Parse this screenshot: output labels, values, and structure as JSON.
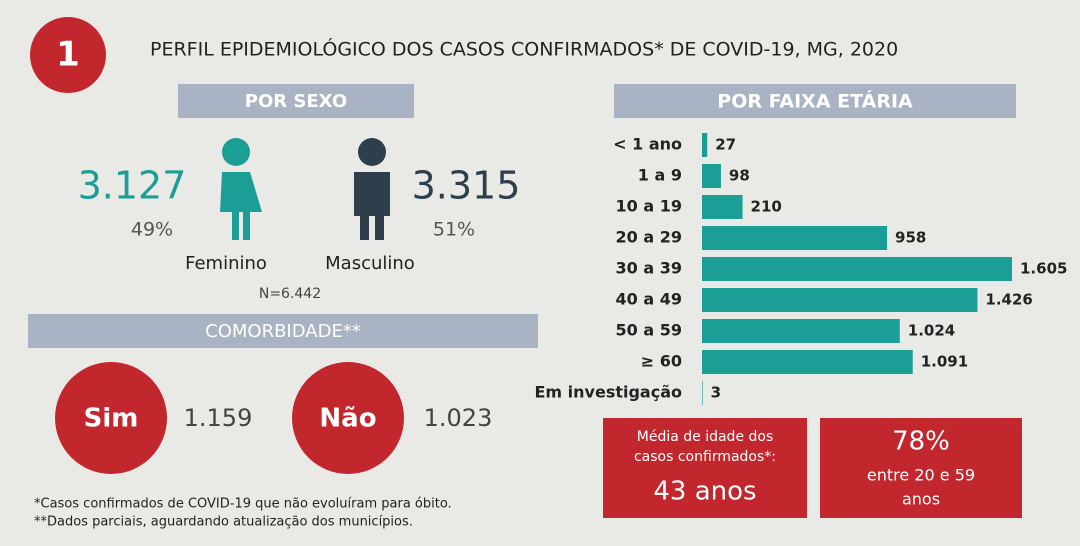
{
  "header": {
    "number": "1",
    "title": "PERFIL EPIDEMIOLÓGICO DOS CASOS CONFIRMADOS* DE COVID-19, MG, 2020"
  },
  "sex": {
    "heading": "POR SEXO",
    "female": {
      "count": "3.127",
      "percent": "49%",
      "label": "Feminino"
    },
    "male": {
      "count": "3.315",
      "percent": "51%",
      "label": "Masculino"
    },
    "total": "N=6.442"
  },
  "comorbidity": {
    "heading": "COMORBIDADE**",
    "yes": {
      "label": "Sim",
      "count": "1.159"
    },
    "no": {
      "label": "Não",
      "count": "1.023"
    }
  },
  "chart_data": {
    "type": "bar",
    "orientation": "horizontal",
    "title": "POR FAIXA ETÁRIA",
    "categories": [
      "< 1 ano",
      "1 a 9",
      "10 a 19",
      "20 a 29",
      "30 a 39",
      "40 a 49",
      "50 a 59",
      "≥ 60",
      "Em investigação"
    ],
    "values": [
      27,
      98,
      210,
      958,
      1605,
      1426,
      1024,
      1091,
      3
    ],
    "value_labels": [
      "27",
      "98",
      "210",
      "958",
      "1.605",
      "1.426",
      "1.024",
      "1.091",
      "3"
    ],
    "color": "#1a9e96"
  },
  "summary": {
    "mean_age": {
      "label": [
        "Média de idade dos",
        "casos confirmados*:"
      ],
      "value": "43 anos"
    },
    "share": {
      "value": "78%",
      "label": [
        "entre 20 e 59",
        "anos"
      ]
    }
  },
  "footnotes": [
    "*Casos confirmados de COVID-19 que não evoluíram para óbito.",
    "**Dados parciais, aguardando atualização dos municípios."
  ]
}
